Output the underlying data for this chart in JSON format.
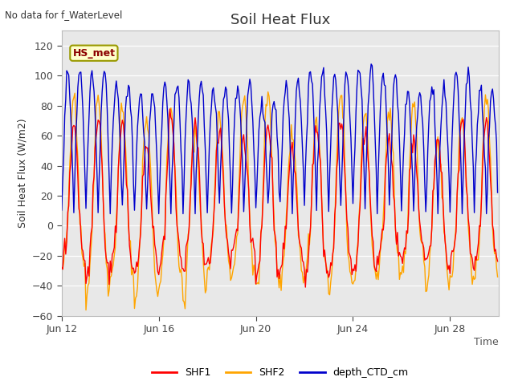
{
  "title": "Soil Heat Flux",
  "top_left_text": "No data for f_WaterLevel",
  "watermark_text": "HS_met",
  "xlabel": "Time",
  "ylabel": "Soil Heat Flux (W/m2)",
  "ylim": [
    -60,
    130
  ],
  "yticks": [
    -60,
    -40,
    -20,
    0,
    20,
    40,
    60,
    80,
    100,
    120
  ],
  "color_SHF1": "#ff0000",
  "color_SHF2": "#ffa500",
  "color_depth": "#0000cc",
  "plot_bg_color": "#e8e8e8",
  "xtick_labels": [
    "Jun 12",
    "Jun 16",
    "Jun 20",
    "Jun 24",
    "Jun 28"
  ],
  "xtick_positions": [
    0,
    4,
    8,
    12,
    16
  ],
  "n_days": 18,
  "pts_per_day": 24,
  "seed": 37,
  "linewidth": 1.0
}
